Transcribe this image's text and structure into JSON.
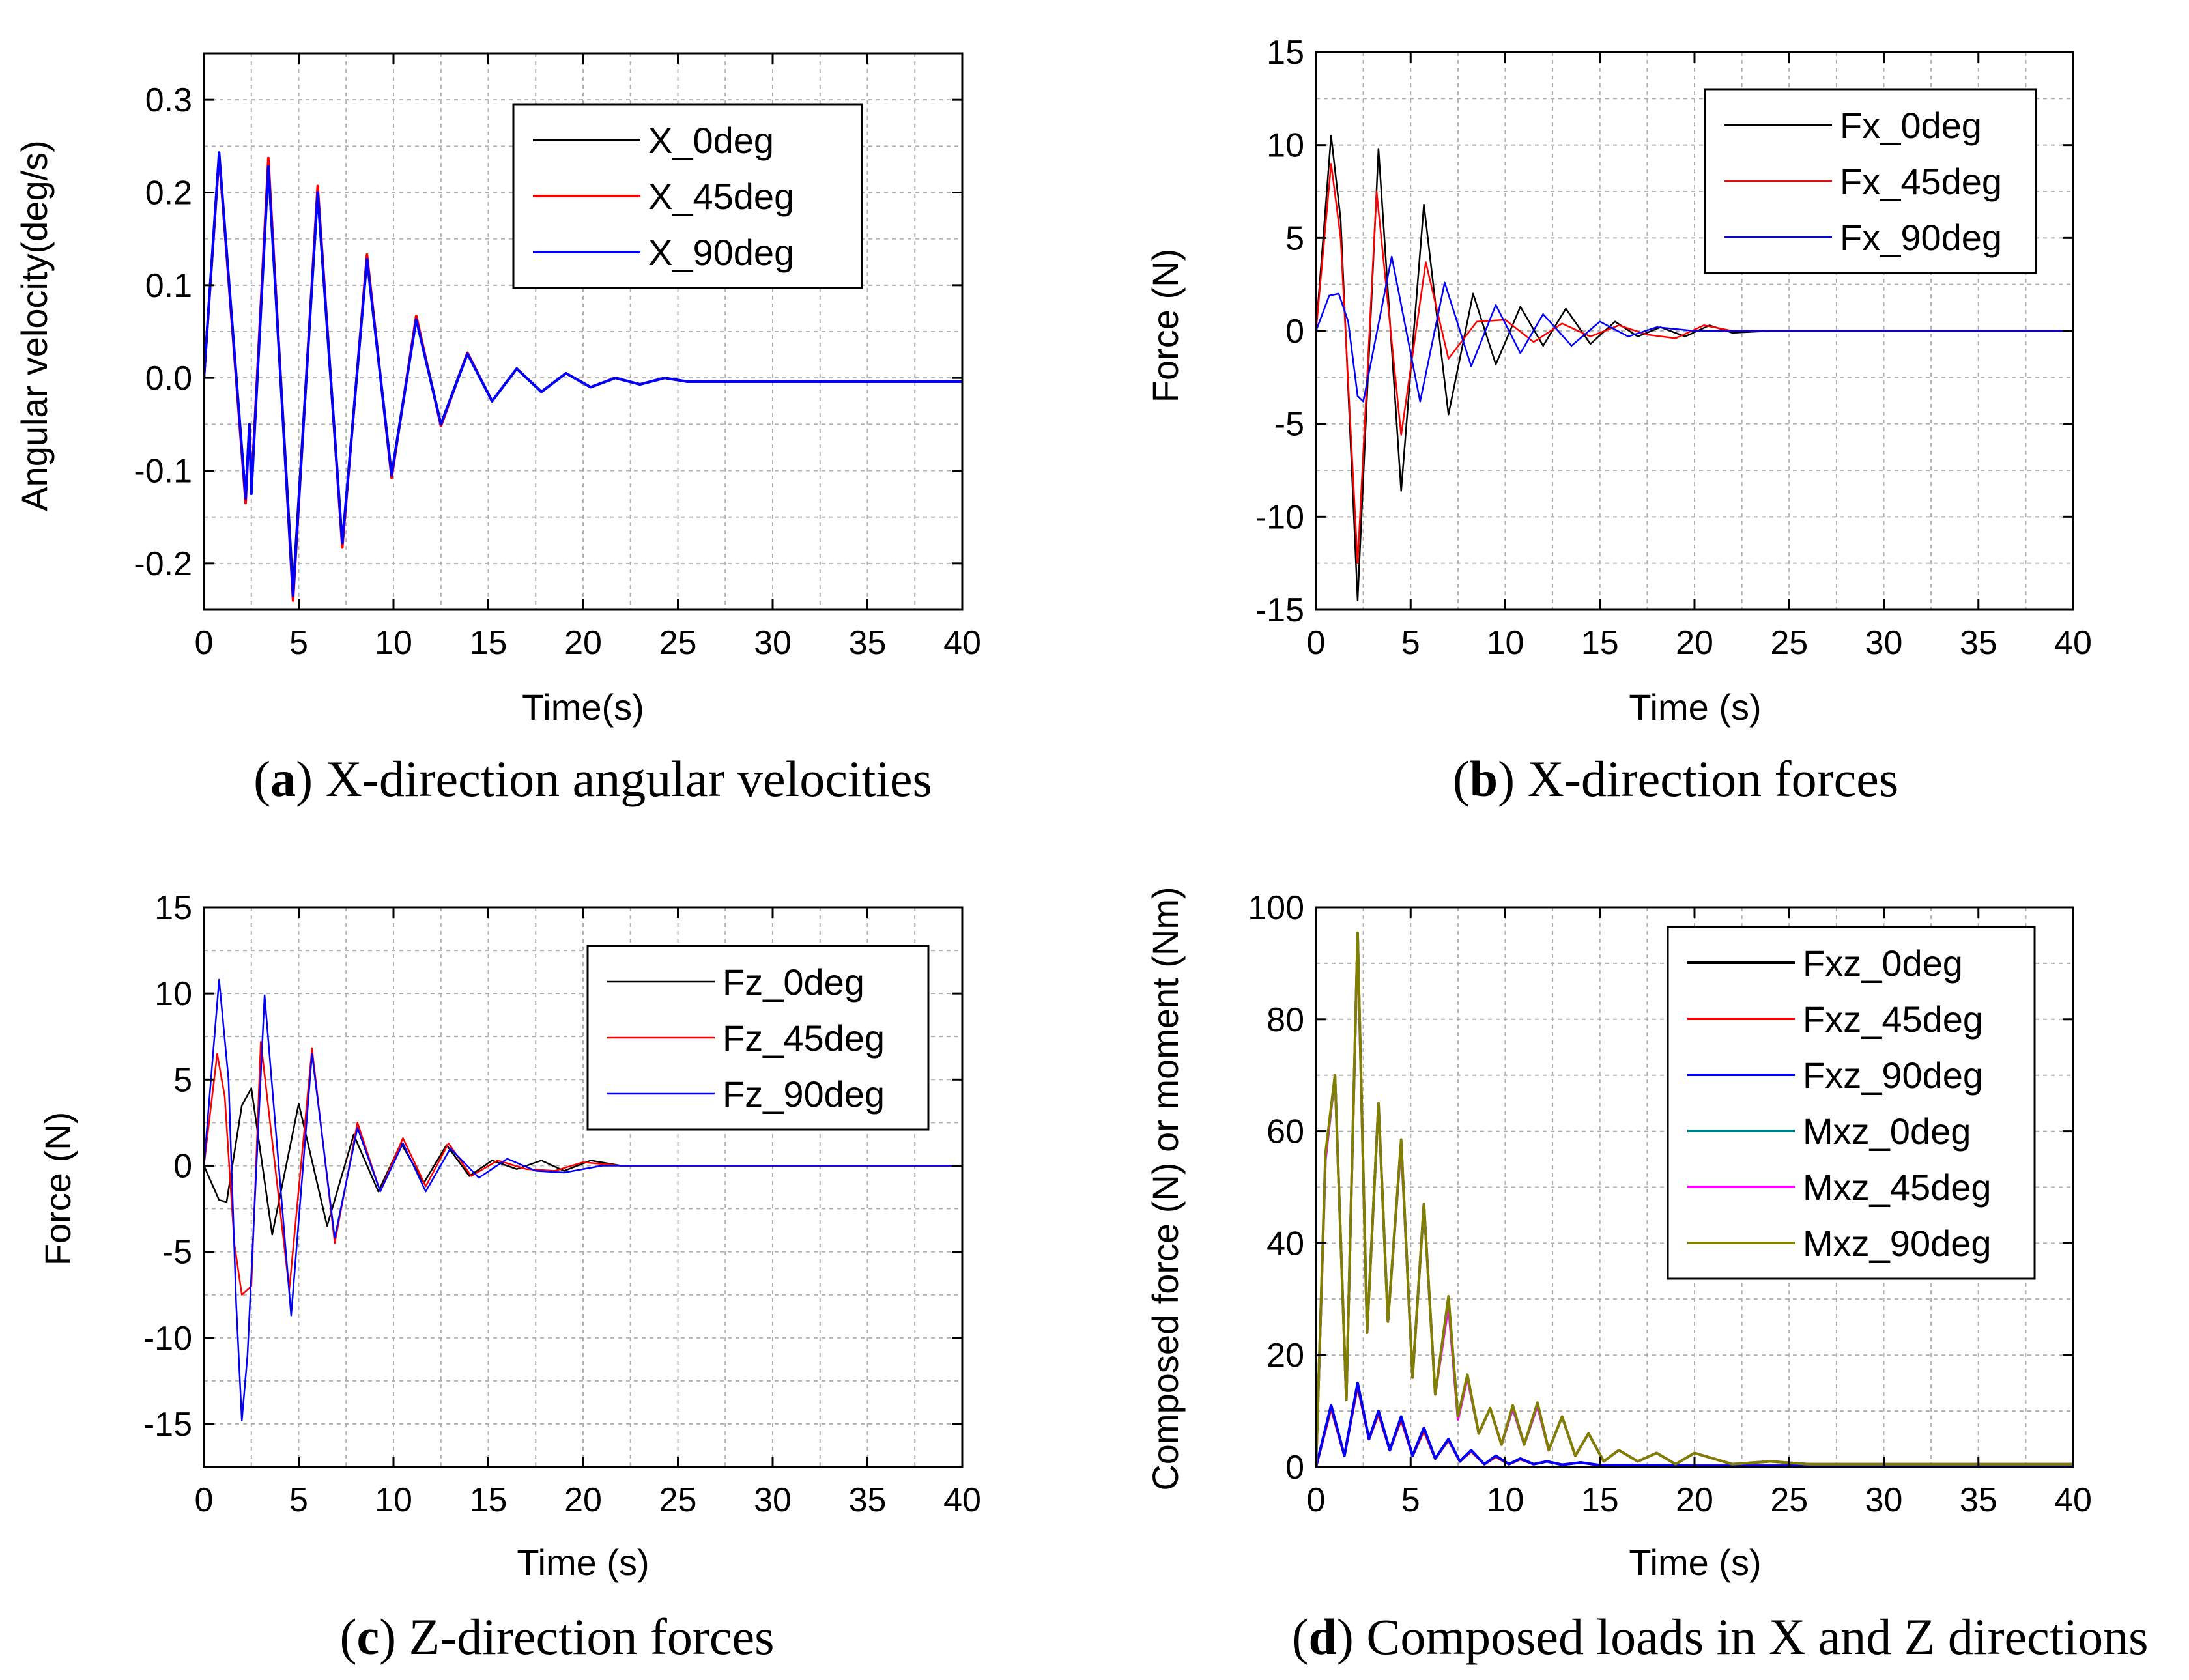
{
  "chart_data": [
    {
      "type": "line",
      "caption": {
        "letter": "a",
        "text": "X-direction angular velocities"
      },
      "xlabel": "Time(s)",
      "ylabel": "Angular velocity(deg/s)",
      "xlim": [
        0,
        40
      ],
      "ylim": [
        -0.25,
        0.35
      ],
      "xticks": [
        0,
        5,
        10,
        15,
        20,
        25,
        30,
        35,
        40
      ],
      "yticks": [
        -0.2,
        -0.1,
        0.0,
        0.1,
        0.2,
        0.3
      ],
      "ytick_labels": [
        "-0.2",
        "-0.1",
        "0.0",
        "0.1",
        "0.2",
        "0.3"
      ],
      "grid": true,
      "legend": "top-right",
      "series": [
        {
          "name": "X_0deg",
          "color": "#000000",
          "x": [
            0,
            0.8,
            2.2,
            2.4,
            2.5,
            3.4,
            4.7,
            6.0,
            7.3,
            8.6,
            9.9,
            11.2,
            12.5,
            13.9,
            15.2,
            16.5,
            17.8,
            19.1,
            20.4,
            21.7,
            23.0,
            24.3,
            25.5,
            27,
            40
          ],
          "y": [
            0,
            0.24,
            -0.13,
            -0.05,
            -0.12,
            0.23,
            -0.23,
            0.2,
            -0.18,
            0.13,
            -0.105,
            0.065,
            -0.05,
            0.027,
            -0.025,
            0.01,
            -0.015,
            0.005,
            -0.01,
            0.0,
            -0.007,
            0.0,
            -0.004,
            -0.004,
            -0.004
          ]
        },
        {
          "name": "X_45deg",
          "color": "#ff0000",
          "x": [
            0,
            0.8,
            2.2,
            2.4,
            2.5,
            3.4,
            4.7,
            6.0,
            7.3,
            8.6,
            9.9,
            11.2,
            12.5,
            13.9,
            15.2,
            16.5,
            17.8,
            19.1,
            20.4,
            21.7,
            23.0,
            24.3,
            25.5,
            27,
            40
          ],
          "y": [
            0,
            0.24,
            -0.135,
            -0.05,
            -0.12,
            0.237,
            -0.24,
            0.207,
            -0.183,
            0.133,
            -0.108,
            0.067,
            -0.052,
            0.027,
            -0.025,
            0.01,
            -0.015,
            0.005,
            -0.01,
            0.0,
            -0.007,
            0.0,
            -0.004,
            -0.004,
            -0.004
          ]
        },
        {
          "name": "X_90deg",
          "color": "#0000ff",
          "x": [
            0,
            0.8,
            2.2,
            2.4,
            2.5,
            3.4,
            4.7,
            6.0,
            7.3,
            8.6,
            9.9,
            11.2,
            12.5,
            13.9,
            15.2,
            16.5,
            17.8,
            19.1,
            20.4,
            21.7,
            23.0,
            24.3,
            25.5,
            27,
            40
          ],
          "y": [
            0,
            0.243,
            -0.13,
            -0.05,
            -0.125,
            0.228,
            -0.235,
            0.2,
            -0.178,
            0.128,
            -0.105,
            0.063,
            -0.05,
            0.026,
            -0.025,
            0.01,
            -0.015,
            0.005,
            -0.01,
            0.0,
            -0.007,
            0.0,
            -0.004,
            -0.004,
            -0.004
          ]
        }
      ]
    },
    {
      "type": "line",
      "caption": {
        "letter": "b",
        "text": "X-direction forces"
      },
      "xlabel": "Time (s)",
      "ylabel": "Force (N)",
      "xlim": [
        0,
        40
      ],
      "ylim": [
        -15,
        15
      ],
      "xticks": [
        0,
        5,
        10,
        15,
        20,
        25,
        30,
        35,
        40
      ],
      "yticks": [
        -15,
        -10,
        -5,
        0,
        5,
        10,
        15
      ],
      "ytick_labels": [
        "-15",
        "-10",
        "-5",
        "0",
        "5",
        "10",
        "15"
      ],
      "grid": true,
      "legend": "top-right",
      "series": [
        {
          "name": "Fx_0deg",
          "color": "#000000",
          "x": [
            0,
            0.8,
            1.3,
            2.2,
            3.3,
            4.5,
            5.7,
            7.0,
            8.3,
            9.5,
            10.8,
            12.0,
            13.2,
            14.5,
            15.8,
            17.0,
            18.2,
            19.5,
            20.8,
            22.0,
            24,
            40
          ],
          "y": [
            0,
            10.5,
            6,
            -14.5,
            9.8,
            -8.6,
            6.8,
            -4.5,
            2.0,
            -1.8,
            1.3,
            -0.8,
            1.2,
            -0.7,
            0.5,
            -0.3,
            0.2,
            -0.3,
            0.3,
            -0.1,
            0,
            0
          ]
        },
        {
          "name": "Fx_45deg",
          "color": "#ff0000",
          "x": [
            0,
            0.8,
            1.3,
            2.2,
            3.2,
            4.5,
            5.8,
            7.0,
            8.5,
            10.0,
            11.5,
            13.0,
            14.5,
            16.0,
            17.5,
            19.0,
            20.5,
            22,
            40
          ],
          "y": [
            0,
            9.0,
            5,
            -12.5,
            7.5,
            -5.6,
            3.7,
            -1.5,
            0.5,
            0.6,
            -0.6,
            0.4,
            -0.3,
            0.3,
            -0.2,
            -0.4,
            0.3,
            0,
            0
          ]
        },
        {
          "name": "Fx_90deg",
          "color": "#0000ff",
          "x": [
            0,
            0.7,
            1.2,
            1.7,
            2.2,
            2.5,
            4.0,
            5.5,
            6.8,
            8.2,
            9.5,
            10.8,
            12.0,
            13.5,
            15.0,
            16.5,
            18,
            20,
            40
          ],
          "y": [
            0,
            1.9,
            2.0,
            0.5,
            -3.5,
            -3.8,
            4.0,
            -3.8,
            2.6,
            -1.9,
            1.4,
            -1.2,
            0.9,
            -0.8,
            0.5,
            -0.3,
            0.2,
            0,
            0
          ]
        }
      ]
    },
    {
      "type": "line",
      "caption": {
        "letter": "c",
        "text": "Z-direction forces"
      },
      "xlabel": "Time (s)",
      "ylabel": "Force (N)",
      "xlim": [
        0,
        40
      ],
      "ylim": [
        -17.5,
        15
      ],
      "xticks": [
        0,
        5,
        10,
        15,
        20,
        25,
        30,
        35,
        40
      ],
      "yticks": [
        -15,
        -10,
        -5,
        0,
        5,
        10,
        15
      ],
      "ytick_labels": [
        "-15",
        "-10",
        "-5",
        "0",
        "5",
        "10",
        "15"
      ],
      "grid": true,
      "legend": "top-right",
      "series": [
        {
          "name": "Fz_0deg",
          "color": "#000000",
          "x": [
            0,
            0.8,
            1.2,
            2.0,
            2.5,
            3.6,
            5.0,
            6.5,
            7.9,
            9.2,
            10.4,
            11.6,
            12.8,
            14.0,
            15.2,
            16.5,
            17.8,
            19.0,
            20.4,
            22,
            40
          ],
          "y": [
            0,
            -2.0,
            -2.1,
            3.5,
            4.5,
            -4.0,
            3.6,
            -3.5,
            1.8,
            -1.5,
            1.3,
            -1.0,
            1.2,
            -0.6,
            0.3,
            -0.2,
            0.3,
            -0.3,
            0.3,
            0,
            0
          ]
        },
        {
          "name": "Fz_45deg",
          "color": "#ff0000",
          "x": [
            0,
            0.7,
            1.1,
            1.6,
            2.0,
            2.5,
            3.0,
            4.5,
            5.7,
            6.9,
            8.1,
            9.3,
            10.5,
            11.7,
            12.9,
            14.1,
            15.5,
            17,
            18.5,
            20,
            22,
            40
          ],
          "y": [
            0,
            6.5,
            4,
            -4.5,
            -7.5,
            -7.0,
            7.2,
            -7.2,
            6.8,
            -4.5,
            2.5,
            -1.5,
            1.6,
            -1.2,
            1.3,
            -0.6,
            0.3,
            -0.2,
            -0.3,
            0.2,
            0,
            0
          ]
        },
        {
          "name": "Fz_90deg",
          "color": "#0000ff",
          "x": [
            0,
            0.8,
            1.3,
            1.7,
            2.0,
            2.3,
            3.2,
            4.6,
            5.7,
            6.9,
            8.1,
            9.3,
            10.5,
            11.7,
            13.0,
            14.5,
            16,
            17.5,
            19,
            21,
            40
          ],
          "y": [
            0,
            10.8,
            5,
            -8,
            -14.8,
            -11,
            9.9,
            -8.7,
            6.5,
            -4.2,
            2.2,
            -1.5,
            1.3,
            -1.5,
            1.0,
            -0.7,
            0.4,
            -0.3,
            -0.4,
            0,
            0
          ]
        }
      ]
    },
    {
      "type": "line",
      "caption": {
        "letter": "d",
        "text": "Composed loads in X and Z directions"
      },
      "xlabel": "Time (s)",
      "ylabel": "Composed force (N) or moment (Nm)",
      "xlim": [
        0,
        40
      ],
      "ylim": [
        0,
        100
      ],
      "xticks": [
        0,
        5,
        10,
        15,
        20,
        25,
        30,
        35,
        40
      ],
      "yticks": [
        0,
        20,
        40,
        60,
        80,
        100
      ],
      "ytick_labels": [
        "0",
        "20",
        "40",
        "60",
        "80",
        "100"
      ],
      "grid": true,
      "legend": "top-right",
      "series": [
        {
          "name": "Fxz_0deg",
          "color": "#000000",
          "x": [
            0,
            0.8,
            1.5,
            2.2,
            2.8,
            3.3,
            3.9,
            4.5,
            5.1,
            5.7,
            6.3,
            7.0,
            7.6,
            8.2,
            8.9,
            9.5,
            10.2,
            10.8,
            11.5,
            12.2,
            13.0,
            14.0,
            15.0,
            17,
            20,
            40
          ],
          "y": [
            0,
            11,
            2,
            15,
            5,
            10,
            3,
            9,
            2,
            7,
            1.5,
            5,
            1,
            3,
            0.5,
            2,
            0.5,
            1.5,
            0.5,
            1,
            0.4,
            0.8,
            0.3,
            0.3,
            0.2,
            0.2
          ]
        },
        {
          "name": "Fxz_45deg",
          "color": "#ff0000",
          "x": [
            0,
            0.8,
            1.5,
            2.2,
            2.8,
            3.3,
            3.9,
            4.5,
            5.1,
            5.7,
            6.3,
            7.0,
            7.6,
            8.2,
            8.9,
            9.5,
            10.2,
            10.8,
            11.5,
            12.2,
            13.0,
            14.0,
            15.0,
            17,
            20,
            40
          ],
          "y": [
            0,
            10.5,
            2,
            14.5,
            5,
            9.5,
            3,
            8.5,
            2,
            6.5,
            1.5,
            4.8,
            1,
            2.8,
            0.5,
            1.8,
            0.5,
            1.4,
            0.5,
            1,
            0.4,
            0.8,
            0.3,
            0.3,
            0.2,
            0.2
          ]
        },
        {
          "name": "Fxz_90deg",
          "color": "#0000ff",
          "x": [
            0,
            0.8,
            1.5,
            2.2,
            2.8,
            3.3,
            3.9,
            4.5,
            5.1,
            5.7,
            6.3,
            7.0,
            7.6,
            8.2,
            8.9,
            9.5,
            10.2,
            10.8,
            11.5,
            12.2,
            13.0,
            14.0,
            15.0,
            17,
            20,
            40
          ],
          "y": [
            0,
            11,
            2,
            15,
            5,
            10,
            3,
            9,
            2,
            7,
            1.5,
            5,
            1,
            3,
            0.5,
            2,
            0.5,
            1.5,
            0.5,
            1,
            0.4,
            0.8,
            0.3,
            0.3,
            0.2,
            0.2
          ]
        },
        {
          "name": "Mxz_0deg",
          "color": "#008080",
          "x": [
            0,
            0.5,
            1.0,
            1.6,
            2.2,
            2.7,
            3.3,
            3.8,
            4.5,
            5.1,
            5.7,
            6.3,
            7.0,
            7.5,
            8.0,
            8.6,
            9.2,
            9.8,
            10.4,
            11.0,
            11.7,
            12.3,
            13.0,
            13.7,
            14.4,
            15.2,
            16,
            17,
            18,
            19,
            20,
            22,
            24,
            26,
            30,
            40
          ],
          "y": [
            0,
            55,
            70,
            12,
            95,
            24,
            65,
            26,
            58,
            16,
            47,
            13,
            30,
            9,
            16,
            6,
            10.5,
            4,
            10.5,
            4,
            11,
            3,
            9,
            2,
            6,
            1,
            3,
            1,
            2.5,
            0.5,
            2.5,
            0.5,
            1,
            0.5,
            0.5,
            0.5
          ]
        },
        {
          "name": "Mxz_45deg",
          "color": "#ff00ff",
          "x": [
            0,
            0.5,
            1.0,
            1.6,
            2.2,
            2.7,
            3.3,
            3.8,
            4.5,
            5.1,
            5.7,
            6.3,
            7.0,
            7.5,
            8.0,
            8.6,
            9.2,
            9.8,
            10.4,
            11.0,
            11.7,
            12.3,
            13.0,
            13.7,
            14.4,
            15.2,
            16,
            17,
            18,
            19,
            20,
            22,
            24,
            26,
            30,
            40
          ],
          "y": [
            0,
            55,
            70,
            12,
            95,
            24,
            65,
            26,
            58,
            16,
            47,
            13,
            29,
            8.5,
            16,
            6,
            10.5,
            4,
            10.5,
            4,
            11,
            3,
            9,
            2,
            6,
            1,
            3,
            1,
            2.5,
            0.5,
            2.5,
            0.5,
            1,
            0.5,
            0.5,
            0.5
          ]
        },
        {
          "name": "Mxz_90deg",
          "color": "#808000",
          "x": [
            0,
            0.5,
            1.0,
            1.6,
            2.2,
            2.7,
            3.3,
            3.8,
            4.5,
            5.1,
            5.7,
            6.3,
            7.0,
            7.5,
            8.0,
            8.6,
            9.2,
            9.8,
            10.4,
            11.0,
            11.7,
            12.3,
            13.0,
            13.7,
            14.4,
            15.2,
            16,
            17,
            18,
            19,
            20,
            22,
            24,
            26,
            30,
            40
          ],
          "y": [
            0,
            56,
            70,
            12,
            95.5,
            24,
            65,
            26,
            58.5,
            16,
            47,
            13,
            30.5,
            9,
            16.5,
            6,
            10.5,
            4,
            11,
            4,
            11.5,
            3,
            9,
            2,
            6,
            1,
            3,
            1,
            2.5,
            0.5,
            2.5,
            0.5,
            1,
            0.5,
            0.5,
            0.5
          ]
        }
      ]
    }
  ]
}
